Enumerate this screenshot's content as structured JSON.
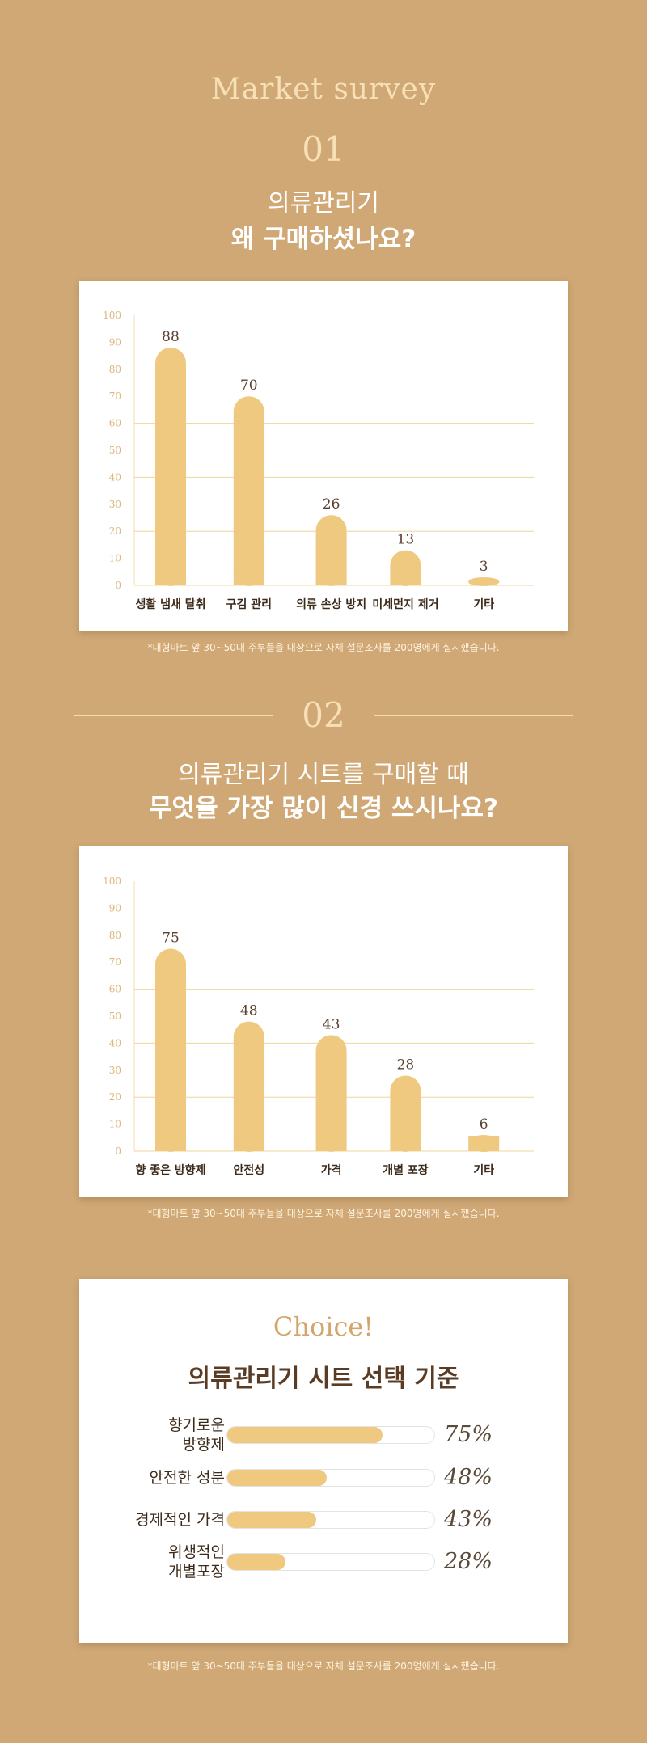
{
  "header": {
    "title": "Market survey"
  },
  "section1": {
    "number": "01",
    "question_line1": "의류관리기",
    "question_line2": "왜 구매하셨나요?",
    "footnote": "*대형마트 앞 30~50대 주부들을 대상으로 자체 설문조사를 200명에게 실시했습니다."
  },
  "section2": {
    "number": "02",
    "question_line1": "의류관리기 시트를 구매할 때",
    "question_line2": "무엇을 가장 많이 신경 쓰시나요?",
    "footnote": "*대형마트 앞 30~50대 주부들을 대상으로 자체 설문조사를 200명에게 실시했습니다."
  },
  "choice": {
    "title": "Choice!",
    "subtitle": "의류관리기 시트 선택 기준",
    "footnote": "*대형마트 앞 30~50대 주부들을 대상으로 자체 설문조사를 200명에게 실시했습니다."
  },
  "colors": {
    "background": "#cfa876",
    "bar": "#f0c980",
    "accent": "#f7e0b6",
    "dark_text": "#5a3c24"
  },
  "chart_data": [
    {
      "type": "bar",
      "categories": [
        "생활 냄새 탈취",
        "구김 관리",
        "의류 손상 방지",
        "미세먼지 제거",
        "기타"
      ],
      "values": [
        88,
        70,
        26,
        13,
        3
      ],
      "ylim": [
        0,
        100
      ],
      "yticks": [
        0,
        10,
        20,
        30,
        40,
        50,
        60,
        70,
        80,
        90,
        100
      ],
      "gridlines": [
        20,
        40,
        60
      ],
      "title": "",
      "xlabel": "",
      "ylabel": ""
    },
    {
      "type": "bar",
      "categories": [
        "향 좋은 방향제",
        "안전성",
        "가격",
        "개별 포장",
        "기타"
      ],
      "values": [
        75,
        48,
        43,
        28,
        6
      ],
      "ylim": [
        0,
        100
      ],
      "yticks": [
        0,
        10,
        20,
        30,
        40,
        50,
        60,
        70,
        80,
        90,
        100
      ],
      "gridlines": [
        20,
        40,
        60
      ],
      "title": "",
      "xlabel": "",
      "ylabel": ""
    },
    {
      "type": "bar",
      "orientation": "horizontal",
      "categories": [
        "향기로운\n방향제",
        "안전한 성분",
        "경제적인 가격",
        "위생적인\n개별포장"
      ],
      "values": [
        75,
        48,
        43,
        28
      ],
      "value_labels": [
        "75%",
        "48%",
        "43%",
        "28%"
      ],
      "xlim": [
        0,
        100
      ],
      "title": "",
      "xlabel": "",
      "ylabel": ""
    }
  ]
}
